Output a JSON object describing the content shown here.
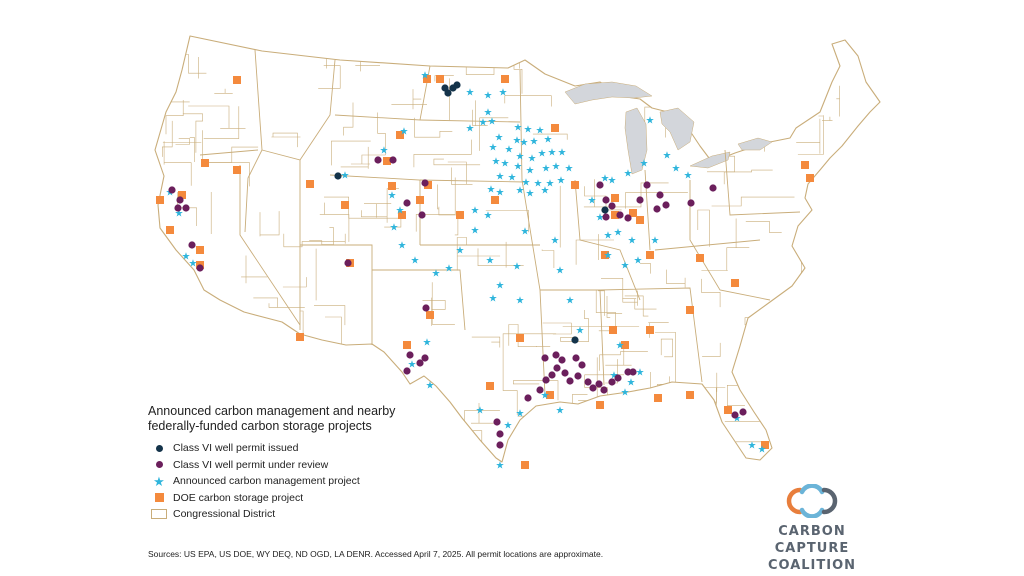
{
  "colors": {
    "issued": "#14334a",
    "review": "#6b1f5c",
    "announced": "#2fb5dc",
    "doe": "#f48a3d",
    "boundary": "#c9ad7a",
    "land": "#ffffff",
    "lakes": "#d3d6db"
  },
  "legend": {
    "title": "Announced carbon management and nearby federally-funded carbon storage projects",
    "items": [
      {
        "label": "Class VI well permit issued",
        "symbol": "circle",
        "color": "#14334a"
      },
      {
        "label": "Class VI well permit under review",
        "symbol": "circle",
        "color": "#6b1f5c"
      },
      {
        "label": "Announced carbon management project",
        "symbol": "star",
        "color": "#2fb5dc"
      },
      {
        "label": "DOE carbon storage project",
        "symbol": "square",
        "color": "#f48a3d"
      },
      {
        "label": "Congressional District",
        "symbol": "box",
        "color": "#c9ad7a"
      }
    ]
  },
  "sources": "Sources: US EPA, US DOE, WY DEQ, ND OGD, LA DENR. Accessed April 7, 2025. All permit locations are approximate.",
  "logo": {
    "line1": "CARBON CAPTURE",
    "line2": "COALITION",
    "colors": [
      "#e87e3c",
      "#6bb4d8",
      "#5a6470"
    ]
  }
}
